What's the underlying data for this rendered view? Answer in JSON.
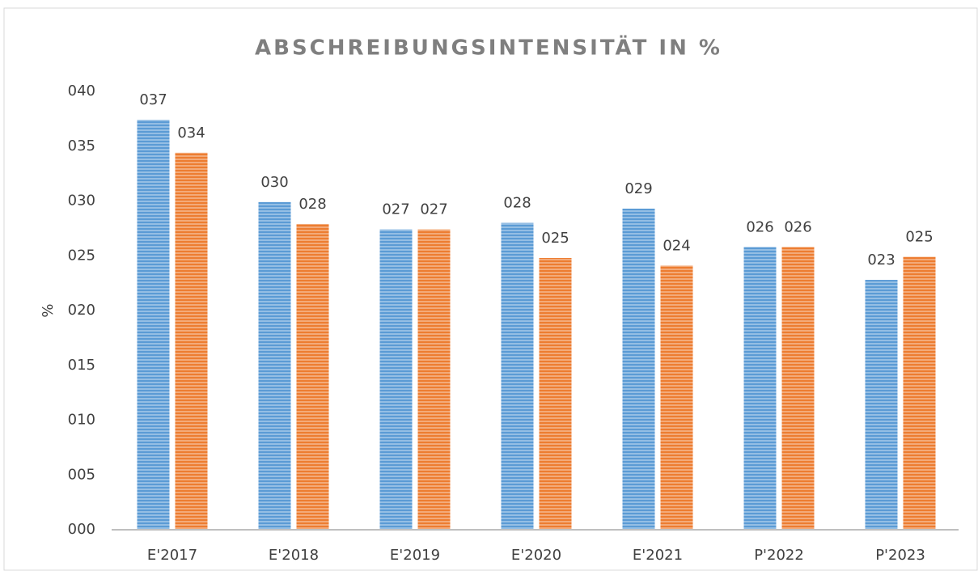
{
  "chart_data": {
    "type": "bar",
    "title": "ABSCHREIBUNGSINTENSITÄT IN %",
    "y_label": "%",
    "categories": [
      "E'2017",
      "E'2018",
      "E'2019",
      "E'2020",
      "E'2021",
      "P'2022",
      "P'2023"
    ],
    "series": [
      {
        "color": "#5b9bd5",
        "values": [
          37.4,
          29.9,
          27.4,
          28.0,
          29.3,
          25.8,
          22.8
        ],
        "value_labels": [
          "037",
          "030",
          "027",
          "028",
          "029",
          "026",
          "023"
        ]
      },
      {
        "color": "#ed7d31",
        "values": [
          34.4,
          27.9,
          27.4,
          24.8,
          24.1,
          25.8,
          24.9
        ],
        "value_labels": [
          "034",
          "028",
          "027",
          "025",
          "024",
          "026",
          "025"
        ]
      }
    ],
    "ylim": [
      0,
      40
    ],
    "yticks": [
      {
        "value": 0,
        "label": "000"
      },
      {
        "value": 5,
        "label": "005"
      },
      {
        "value": 10,
        "label": "010"
      },
      {
        "value": 15,
        "label": "015"
      },
      {
        "value": 20,
        "label": "020"
      },
      {
        "value": 25,
        "label": "025"
      },
      {
        "value": 30,
        "label": "030"
      },
      {
        "value": 35,
        "label": "035"
      },
      {
        "value": 40,
        "label": "040"
      }
    ],
    "grid": false
  }
}
